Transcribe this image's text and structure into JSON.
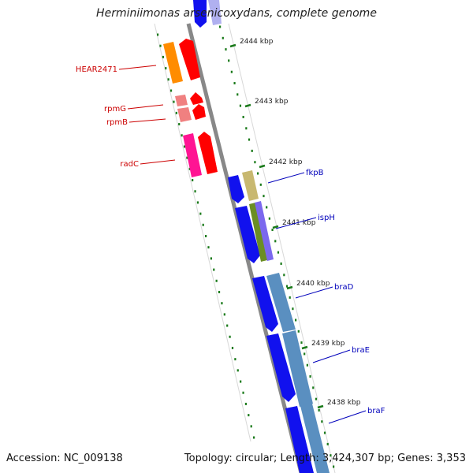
{
  "title": "Herminiimonas arsenicoxydans, complete genome",
  "footer": {
    "accession": "Accession: NC_009138",
    "summary": "Topology: circular; Length: 3,424,307 bp; Genes: 3,353"
  },
  "scale_labels": [
    "2444 kbp",
    "2443 kbp",
    "2442 kbp",
    "2441 kbp",
    "2440 kbp",
    "2439 kbp",
    "2438 kbp"
  ],
  "left_genes": [
    "HEAR2471",
    "rpmG",
    "rpmB",
    "radC"
  ],
  "right_genes": [
    "fkpB",
    "ispH",
    "braD",
    "braE",
    "braF"
  ],
  "colors": {
    "backbone": "#8a8a8a",
    "tick": "#1a7a1a",
    "left_label": "#cc0000",
    "right_label": "#0000bb",
    "blue_cds": "#1111ee",
    "steel_cds": "#5a8fc0",
    "orange": "#ff8c00",
    "red": "#ff0000",
    "pink": "#f08080",
    "magenta": "#ff1493",
    "khaki": "#c8b870",
    "olive": "#6b8e23",
    "slate": "#7b68ee",
    "lavender": "#b0b0f0"
  }
}
